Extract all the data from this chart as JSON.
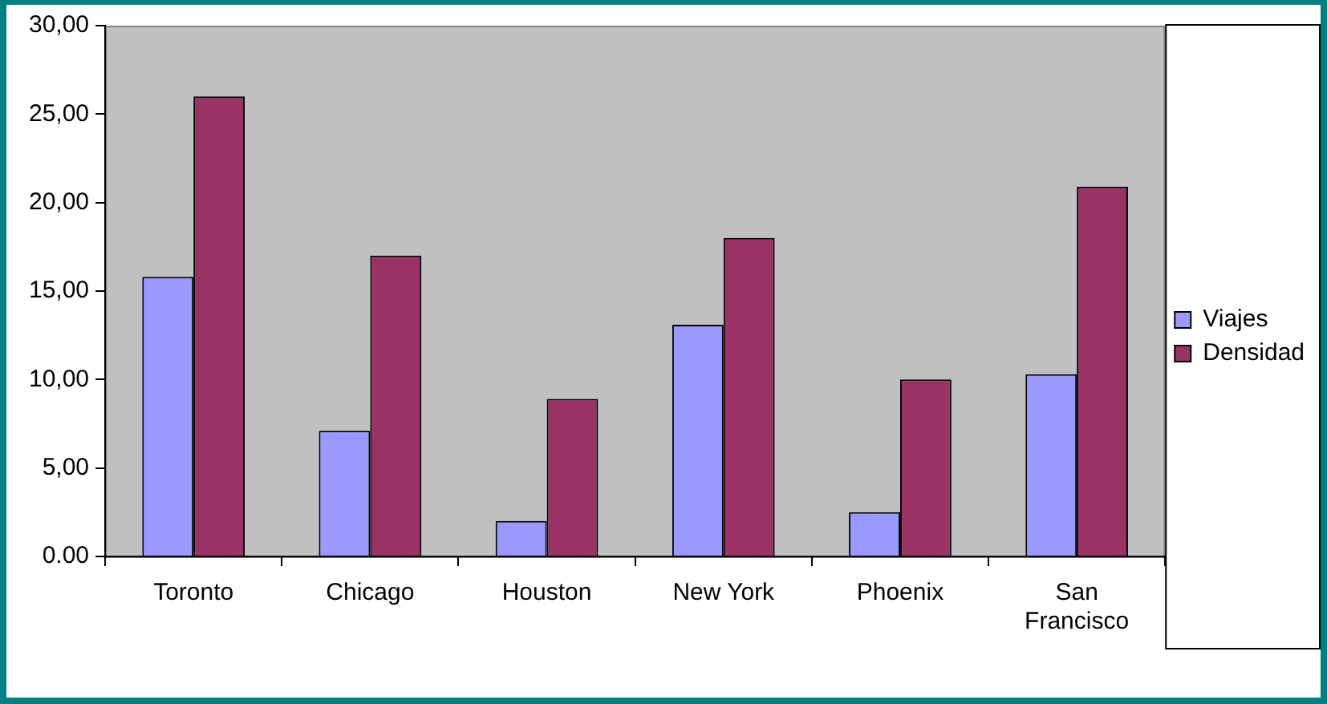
{
  "chart_data": {
    "type": "bar",
    "categories": [
      "Toronto",
      "Chicago",
      "Houston",
      "New York",
      "Phoenix",
      "San Francisco"
    ],
    "series": [
      {
        "name": "Viajes",
        "color": "#9999ff",
        "values": [
          15.8,
          7.1,
          2.0,
          13.1,
          2.5,
          10.3
        ]
      },
      {
        "name": "Densidad",
        "color": "#993366",
        "values": [
          26.0,
          17.0,
          8.9,
          18.0,
          10.0,
          20.9
        ]
      }
    ],
    "ylim": [
      0,
      30
    ],
    "yticks": [
      {
        "value": 0,
        "label": "0.00"
      },
      {
        "value": 5,
        "label": "5,00"
      },
      {
        "value": 10,
        "label": "10,00"
      },
      {
        "value": 15,
        "label": "15,00"
      },
      {
        "value": 20,
        "label": "20,00"
      },
      {
        "value": 25,
        "label": "25,00"
      },
      {
        "value": 30,
        "label": "30,00"
      }
    ],
    "grid": false,
    "legend": "right"
  }
}
